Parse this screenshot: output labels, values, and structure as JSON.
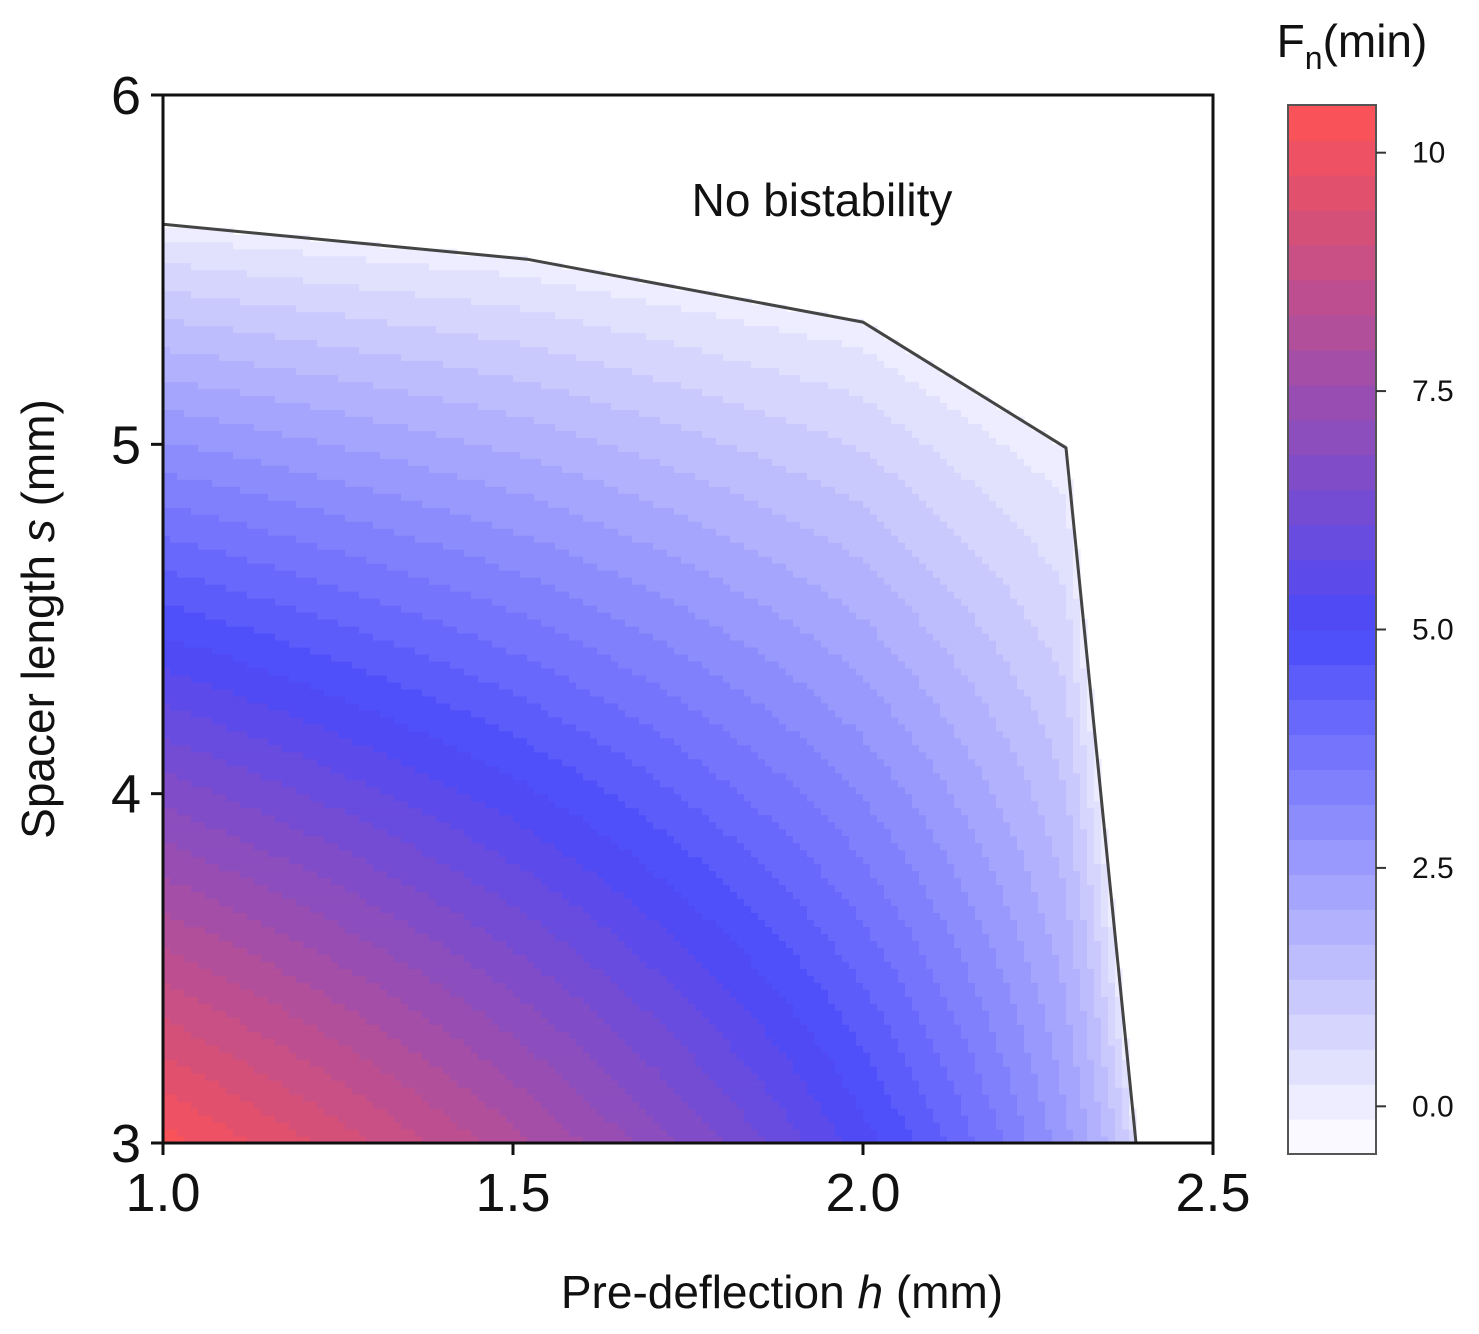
{
  "chart_data": {
    "type": "heatmap",
    "subtype": "filled-contour",
    "title": "",
    "xlabel_prefix": "Pre-deflection ",
    "xlabel_var": "h",
    "xlabel_suffix": " (mm)",
    "ylabel_prefix": "Spacer length ",
    "ylabel_var": "s",
    "ylabel_suffix": " (mm)",
    "xlim": [
      1.0,
      2.5
    ],
    "ylim": [
      3,
      6
    ],
    "xticks": [
      1.0,
      1.5,
      2.0,
      2.5
    ],
    "xtick_labels": [
      "1.0",
      "1.5",
      "2.0",
      "2.5"
    ],
    "yticks": [
      3,
      4,
      5,
      6
    ],
    "ytick_labels": [
      "3",
      "4",
      "5",
      "6"
    ],
    "x_grid": [
      1.0,
      1.1,
      1.2,
      1.3,
      1.4,
      1.5,
      1.6,
      1.7,
      1.8,
      1.9,
      2.0,
      2.1,
      2.2,
      2.3,
      2.4
    ],
    "y_grid": [
      3.0,
      3.25,
      3.5,
      3.75,
      4.0,
      4.25,
      4.5,
      4.75,
      5.0,
      5.25,
      5.5,
      5.75,
      6.0
    ],
    "boundary_curve": {
      "description": "bistability boundary (F_n(min) = 0)",
      "h": [
        1.0,
        1.52,
        2.0,
        2.29,
        2.39
      ],
      "s": [
        5.63,
        5.53,
        5.35,
        4.99,
        3.0
      ]
    },
    "annotation": "No bistability",
    "colorbar": {
      "title_main": "F",
      "title_sub": "n",
      "title_rest": "(min)",
      "min": -0.5,
      "max": 10.5,
      "ticks": [
        0.0,
        2.5,
        5.0,
        7.5,
        10
      ],
      "tick_labels": [
        "0.0",
        "2.5",
        "5.0",
        "7.5",
        "10"
      ],
      "levels": 30,
      "colors": {
        "low": "#ffffff",
        "mid": "#4a4afb",
        "high": "#ff5252"
      }
    }
  }
}
